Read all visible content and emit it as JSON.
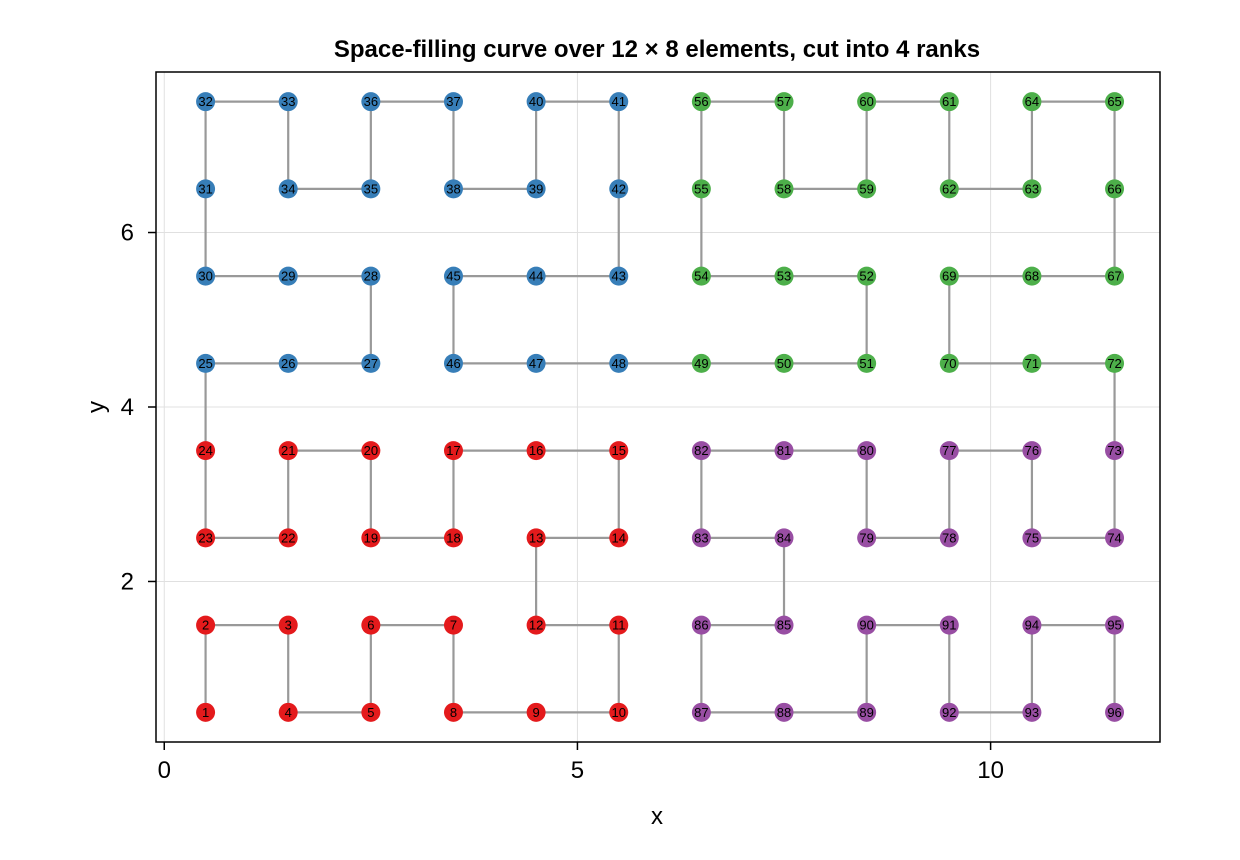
{
  "chart_data": {
    "type": "scatter",
    "title": "Space-filling curve over 12 × 8 elements, cut into 4 ranks",
    "xlabel": "x",
    "ylabel": "y",
    "xlim": [
      -0.1,
      12.05
    ],
    "ylim": [
      0.16,
      7.84
    ],
    "xticks": [
      0,
      5,
      10
    ],
    "yticks": [
      2,
      4,
      6
    ],
    "grid": true,
    "legend": "none",
    "path_color": "#999999",
    "rank_colors": [
      "#e41a1c",
      "#377eb8",
      "#4daf4a",
      "#984ea3"
    ],
    "points": [
      {
        "n": 1,
        "x": 0.5,
        "y": 0.5,
        "rank": 0
      },
      {
        "n": 2,
        "x": 0.5,
        "y": 1.5,
        "rank": 0
      },
      {
        "n": 3,
        "x": 1.5,
        "y": 1.5,
        "rank": 0
      },
      {
        "n": 4,
        "x": 1.5,
        "y": 0.5,
        "rank": 0
      },
      {
        "n": 5,
        "x": 2.5,
        "y": 0.5,
        "rank": 0
      },
      {
        "n": 6,
        "x": 2.5,
        "y": 1.5,
        "rank": 0
      },
      {
        "n": 7,
        "x": 3.5,
        "y": 1.5,
        "rank": 0
      },
      {
        "n": 8,
        "x": 3.5,
        "y": 0.5,
        "rank": 0
      },
      {
        "n": 9,
        "x": 4.5,
        "y": 0.5,
        "rank": 0
      },
      {
        "n": 10,
        "x": 5.5,
        "y": 0.5,
        "rank": 0
      },
      {
        "n": 11,
        "x": 5.5,
        "y": 1.5,
        "rank": 0
      },
      {
        "n": 12,
        "x": 4.5,
        "y": 1.5,
        "rank": 0
      },
      {
        "n": 13,
        "x": 4.5,
        "y": 2.5,
        "rank": 0
      },
      {
        "n": 14,
        "x": 5.5,
        "y": 2.5,
        "rank": 0
      },
      {
        "n": 15,
        "x": 5.5,
        "y": 3.5,
        "rank": 0
      },
      {
        "n": 16,
        "x": 4.5,
        "y": 3.5,
        "rank": 0
      },
      {
        "n": 17,
        "x": 3.5,
        "y": 3.5,
        "rank": 0
      },
      {
        "n": 18,
        "x": 3.5,
        "y": 2.5,
        "rank": 0
      },
      {
        "n": 19,
        "x": 2.5,
        "y": 2.5,
        "rank": 0
      },
      {
        "n": 20,
        "x": 2.5,
        "y": 3.5,
        "rank": 0
      },
      {
        "n": 21,
        "x": 1.5,
        "y": 3.5,
        "rank": 0
      },
      {
        "n": 22,
        "x": 1.5,
        "y": 2.5,
        "rank": 0
      },
      {
        "n": 23,
        "x": 0.5,
        "y": 2.5,
        "rank": 0
      },
      {
        "n": 24,
        "x": 0.5,
        "y": 3.5,
        "rank": 0
      },
      {
        "n": 25,
        "x": 0.5,
        "y": 4.5,
        "rank": 1
      },
      {
        "n": 26,
        "x": 1.5,
        "y": 4.5,
        "rank": 1
      },
      {
        "n": 27,
        "x": 2.5,
        "y": 4.5,
        "rank": 1
      },
      {
        "n": 28,
        "x": 2.5,
        "y": 5.5,
        "rank": 1
      },
      {
        "n": 29,
        "x": 1.5,
        "y": 5.5,
        "rank": 1
      },
      {
        "n": 30,
        "x": 0.5,
        "y": 5.5,
        "rank": 1
      },
      {
        "n": 31,
        "x": 0.5,
        "y": 6.5,
        "rank": 1
      },
      {
        "n": 32,
        "x": 0.5,
        "y": 7.5,
        "rank": 1
      },
      {
        "n": 33,
        "x": 1.5,
        "y": 7.5,
        "rank": 1
      },
      {
        "n": 34,
        "x": 1.5,
        "y": 6.5,
        "rank": 1
      },
      {
        "n": 35,
        "x": 2.5,
        "y": 6.5,
        "rank": 1
      },
      {
        "n": 36,
        "x": 2.5,
        "y": 7.5,
        "rank": 1
      },
      {
        "n": 37,
        "x": 3.5,
        "y": 7.5,
        "rank": 1
      },
      {
        "n": 38,
        "x": 3.5,
        "y": 6.5,
        "rank": 1
      },
      {
        "n": 39,
        "x": 4.5,
        "y": 6.5,
        "rank": 1
      },
      {
        "n": 40,
        "x": 4.5,
        "y": 7.5,
        "rank": 1
      },
      {
        "n": 41,
        "x": 5.5,
        "y": 7.5,
        "rank": 1
      },
      {
        "n": 42,
        "x": 5.5,
        "y": 6.5,
        "rank": 1
      },
      {
        "n": 43,
        "x": 5.5,
        "y": 5.5,
        "rank": 1
      },
      {
        "n": 44,
        "x": 4.5,
        "y": 5.5,
        "rank": 1
      },
      {
        "n": 45,
        "x": 3.5,
        "y": 5.5,
        "rank": 1
      },
      {
        "n": 46,
        "x": 3.5,
        "y": 4.5,
        "rank": 1
      },
      {
        "n": 47,
        "x": 4.5,
        "y": 4.5,
        "rank": 1
      },
      {
        "n": 48,
        "x": 5.5,
        "y": 4.5,
        "rank": 1
      },
      {
        "n": 49,
        "x": 6.5,
        "y": 4.5,
        "rank": 2
      },
      {
        "n": 50,
        "x": 7.5,
        "y": 4.5,
        "rank": 2
      },
      {
        "n": 51,
        "x": 8.5,
        "y": 4.5,
        "rank": 2
      },
      {
        "n": 52,
        "x": 8.5,
        "y": 5.5,
        "rank": 2
      },
      {
        "n": 53,
        "x": 7.5,
        "y": 5.5,
        "rank": 2
      },
      {
        "n": 54,
        "x": 6.5,
        "y": 5.5,
        "rank": 2
      },
      {
        "n": 55,
        "x": 6.5,
        "y": 6.5,
        "rank": 2
      },
      {
        "n": 56,
        "x": 6.5,
        "y": 7.5,
        "rank": 2
      },
      {
        "n": 57,
        "x": 7.5,
        "y": 7.5,
        "rank": 2
      },
      {
        "n": 58,
        "x": 7.5,
        "y": 6.5,
        "rank": 2
      },
      {
        "n": 59,
        "x": 8.5,
        "y": 6.5,
        "rank": 2
      },
      {
        "n": 60,
        "x": 8.5,
        "y": 7.5,
        "rank": 2
      },
      {
        "n": 61,
        "x": 9.5,
        "y": 7.5,
        "rank": 2
      },
      {
        "n": 62,
        "x": 9.5,
        "y": 6.5,
        "rank": 2
      },
      {
        "n": 63,
        "x": 10.5,
        "y": 6.5,
        "rank": 2
      },
      {
        "n": 64,
        "x": 10.5,
        "y": 7.5,
        "rank": 2
      },
      {
        "n": 65,
        "x": 11.5,
        "y": 7.5,
        "rank": 2
      },
      {
        "n": 66,
        "x": 11.5,
        "y": 6.5,
        "rank": 2
      },
      {
        "n": 67,
        "x": 11.5,
        "y": 5.5,
        "rank": 2
      },
      {
        "n": 68,
        "x": 10.5,
        "y": 5.5,
        "rank": 2
      },
      {
        "n": 69,
        "x": 9.5,
        "y": 5.5,
        "rank": 2
      },
      {
        "n": 70,
        "x": 9.5,
        "y": 4.5,
        "rank": 2
      },
      {
        "n": 71,
        "x": 10.5,
        "y": 4.5,
        "rank": 2
      },
      {
        "n": 72,
        "x": 11.5,
        "y": 4.5,
        "rank": 2
      },
      {
        "n": 73,
        "x": 11.5,
        "y": 3.5,
        "rank": 3
      },
      {
        "n": 74,
        "x": 11.5,
        "y": 2.5,
        "rank": 3
      },
      {
        "n": 75,
        "x": 10.5,
        "y": 2.5,
        "rank": 3
      },
      {
        "n": 76,
        "x": 10.5,
        "y": 3.5,
        "rank": 3
      },
      {
        "n": 77,
        "x": 9.5,
        "y": 3.5,
        "rank": 3
      },
      {
        "n": 78,
        "x": 9.5,
        "y": 2.5,
        "rank": 3
      },
      {
        "n": 79,
        "x": 8.5,
        "y": 2.5,
        "rank": 3
      },
      {
        "n": 80,
        "x": 8.5,
        "y": 3.5,
        "rank": 3
      },
      {
        "n": 81,
        "x": 7.5,
        "y": 3.5,
        "rank": 3
      },
      {
        "n": 82,
        "x": 6.5,
        "y": 3.5,
        "rank": 3
      },
      {
        "n": 83,
        "x": 6.5,
        "y": 2.5,
        "rank": 3
      },
      {
        "n": 84,
        "x": 7.5,
        "y": 2.5,
        "rank": 3
      },
      {
        "n": 85,
        "x": 7.5,
        "y": 1.5,
        "rank": 3
      },
      {
        "n": 86,
        "x": 6.5,
        "y": 1.5,
        "rank": 3
      },
      {
        "n": 87,
        "x": 6.5,
        "y": 0.5,
        "rank": 3
      },
      {
        "n": 88,
        "x": 7.5,
        "y": 0.5,
        "rank": 3
      },
      {
        "n": 89,
        "x": 8.5,
        "y": 0.5,
        "rank": 3
      },
      {
        "n": 90,
        "x": 8.5,
        "y": 1.5,
        "rank": 3
      },
      {
        "n": 91,
        "x": 9.5,
        "y": 1.5,
        "rank": 3
      },
      {
        "n": 92,
        "x": 9.5,
        "y": 0.5,
        "rank": 3
      },
      {
        "n": 93,
        "x": 10.5,
        "y": 0.5,
        "rank": 3
      },
      {
        "n": 94,
        "x": 10.5,
        "y": 1.5,
        "rank": 3
      },
      {
        "n": 95,
        "x": 11.5,
        "y": 1.5,
        "rank": 3
      },
      {
        "n": 96,
        "x": 11.5,
        "y": 0.5,
        "rank": 3
      }
    ]
  }
}
